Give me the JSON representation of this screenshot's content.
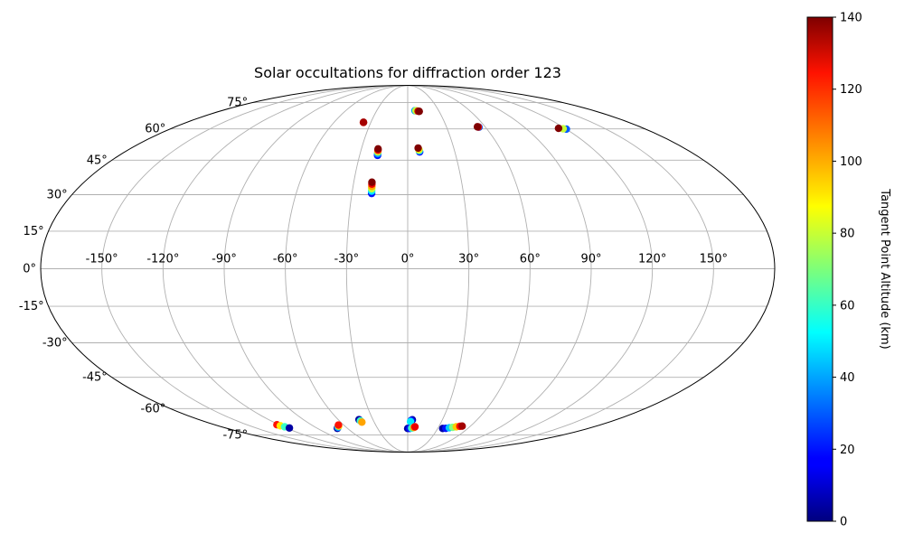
{
  "chart_data": {
    "type": "scatter",
    "projection": "mollweide",
    "title": "Solar occultations for diffraction order 123",
    "grid": true,
    "lon_ticks": [
      -150,
      -120,
      -90,
      -60,
      -30,
      0,
      30,
      60,
      90,
      120,
      150
    ],
    "lat_ticks": [
      -75,
      -60,
      -45,
      -30,
      -15,
      0,
      15,
      30,
      45,
      60,
      75
    ],
    "lon_tick_labels": [
      "-150°",
      "-120°",
      "-90°",
      "-60°",
      "-30°",
      "0°",
      "30°",
      "60°",
      "90°",
      "120°",
      "150°"
    ],
    "lat_tick_labels": [
      "-75°",
      "-60°",
      "-45°",
      "-30°",
      "-15°",
      "0°",
      "15°",
      "30°",
      "45°",
      "60°",
      "75°"
    ],
    "colorbar": {
      "label": "Tangent Point Altitude (km)",
      "colormap": "jet",
      "range": [
        0,
        140
      ],
      "ticks": [
        0,
        20,
        40,
        60,
        80,
        100,
        120,
        140
      ],
      "tick_labels": [
        "0",
        "20",
        "40",
        "60",
        "80",
        "100",
        "120",
        "140"
      ]
    },
    "series": [
      {
        "points": [
          {
            "lon": -36.0,
            "lat": 63.4,
            "alt": 120
          },
          {
            "lon": -36.0,
            "lat": 63.5,
            "alt": 135
          }
        ]
      },
      {
        "points": [
          {
            "lon": 7.0,
            "lat": 70.0,
            "alt": 40
          },
          {
            "lon": 8.0,
            "lat": 70.0,
            "alt": 80
          },
          {
            "lon": 10.0,
            "lat": 69.7,
            "alt": 130
          },
          {
            "lon": 11.0,
            "lat": 69.6,
            "alt": 140
          }
        ]
      },
      {
        "points": [
          {
            "lon": 55.0,
            "lat": 60.9,
            "alt": 30
          },
          {
            "lon": 54.5,
            "lat": 61.0,
            "alt": 120
          },
          {
            "lon": 54.0,
            "lat": 61.1,
            "alt": 140
          }
        ]
      },
      {
        "points": [
          {
            "lon": 120.0,
            "lat": 59.9,
            "alt": 30
          },
          {
            "lon": 118.0,
            "lat": 60.1,
            "alt": 80
          },
          {
            "lon": 115.0,
            "lat": 60.3,
            "alt": 140
          }
        ]
      },
      {
        "points": [
          {
            "lon": -18.8,
            "lat": 47.2,
            "alt": 20
          },
          {
            "lon": -18.9,
            "lat": 48.0,
            "alt": 40
          },
          {
            "lon": -19.0,
            "lat": 48.8,
            "alt": 80
          },
          {
            "lon": -19.1,
            "lat": 49.6,
            "alt": 120
          },
          {
            "lon": -19.2,
            "lat": 50.2,
            "alt": 140
          }
        ]
      },
      {
        "points": [
          {
            "lon": 7.6,
            "lat": 48.8,
            "alt": 20
          },
          {
            "lon": 7.4,
            "lat": 49.4,
            "alt": 60
          },
          {
            "lon": 7.2,
            "lat": 49.9,
            "alt": 90
          },
          {
            "lon": 6.8,
            "lat": 50.6,
            "alt": 140
          }
        ]
      },
      {
        "points": [
          {
            "lon": -19.4,
            "lat": 30.5,
            "alt": 20
          },
          {
            "lon": -19.5,
            "lat": 31.5,
            "alt": 50
          },
          {
            "lon": -19.6,
            "lat": 32.5,
            "alt": 80
          },
          {
            "lon": -19.7,
            "lat": 33.5,
            "alt": 100
          },
          {
            "lon": -19.8,
            "lat": 34.5,
            "alt": 125
          },
          {
            "lon": -19.9,
            "lat": 35.3,
            "alt": 140
          }
        ]
      },
      {
        "points": [
          {
            "lon": -122.0,
            "lat": -68.8,
            "alt": 120
          },
          {
            "lon": -121.0,
            "lat": -69.4,
            "alt": 90
          },
          {
            "lon": -119.0,
            "lat": -70.0,
            "alt": 60
          },
          {
            "lon": -117.0,
            "lat": -70.7,
            "alt": 5
          }
        ]
      },
      {
        "points": [
          {
            "lon": -70.0,
            "lat": -70.9,
            "alt": 5
          },
          {
            "lon": -68.0,
            "lat": -70.3,
            "alt": 40
          },
          {
            "lon": -66.0,
            "lat": -69.6,
            "alt": 90
          },
          {
            "lon": -65.0,
            "lat": -69.0,
            "alt": 120
          }
        ]
      },
      {
        "points": [
          {
            "lon": -42.0,
            "lat": -65.9,
            "alt": 5
          },
          {
            "lon": -41.5,
            "lat": -66.6,
            "alt": 60
          },
          {
            "lon": -41.0,
            "lat": -67.3,
            "alt": 100
          }
        ]
      },
      {
        "points": [
          {
            "lon": 4.0,
            "lat": -66.0,
            "alt": 5
          },
          {
            "lon": 3.0,
            "lat": -66.4,
            "alt": 20
          },
          {
            "lon": 2.5,
            "lat": -67.0,
            "alt": 50
          }
        ]
      },
      {
        "points": [
          {
            "lon": 0.0,
            "lat": -71.0,
            "alt": 5
          },
          {
            "lon": 2.0,
            "lat": -71.0,
            "alt": 20
          },
          {
            "lon": 4.0,
            "lat": -70.8,
            "alt": 60
          },
          {
            "lon": 6.0,
            "lat": -70.4,
            "alt": 100
          },
          {
            "lon": 7.0,
            "lat": -70.0,
            "alt": 125
          }
        ]
      },
      {
        "points": [
          {
            "lon": 35.0,
            "lat": -71.0,
            "alt": 5
          },
          {
            "lon": 38.0,
            "lat": -70.9,
            "alt": 20
          },
          {
            "lon": 41.0,
            "lat": -70.6,
            "alt": 45
          },
          {
            "lon": 44.0,
            "lat": -70.3,
            "alt": 70
          },
          {
            "lon": 47.0,
            "lat": -70.0,
            "alt": 95
          },
          {
            "lon": 50.0,
            "lat": -69.7,
            "alt": 120
          },
          {
            "lon": 52.0,
            "lat": -69.6,
            "alt": 135
          }
        ]
      }
    ]
  }
}
